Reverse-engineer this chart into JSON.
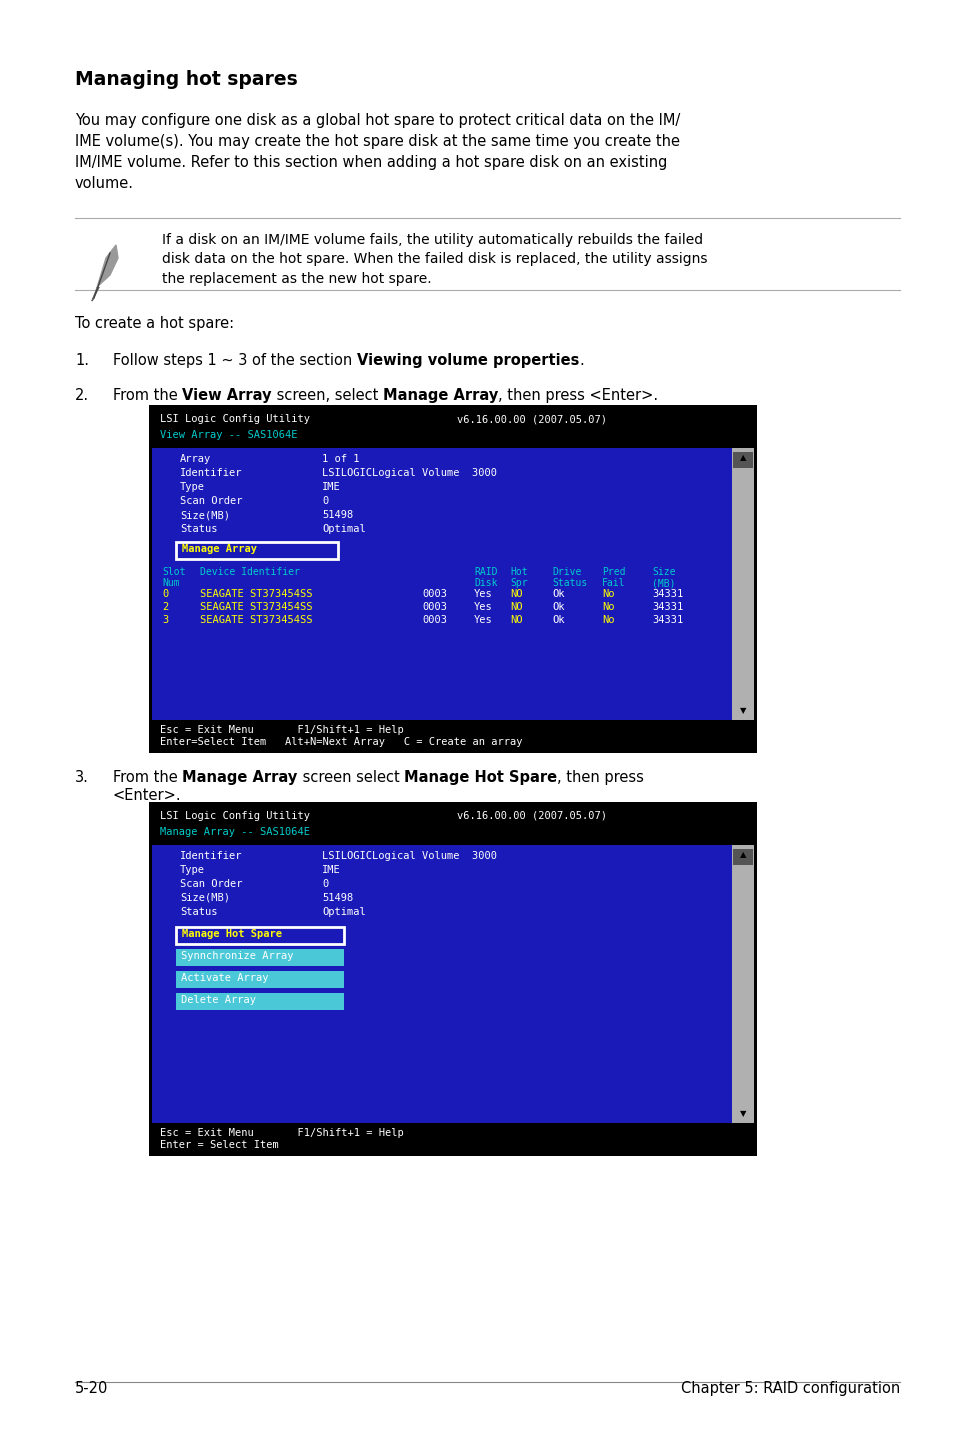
{
  "bg_color": "#ffffff",
  "title": "Managing hot spares",
  "body_text": "You may configure one disk as a global hot spare to protect critical data on the IM/\nIME volume(s). You may create the hot spare disk at the same time you create the\nIM/IME volume. Refer to this section when adding a hot spare disk on an existing\nvolume.",
  "note_text": "If a disk on an IM/IME volume fails, the utility automatically rebuilds the failed\ndisk data on the hot spare. When the failed disk is replaced, the utility assigns\nthe replacement as the new hot spare.",
  "intro_text": "To create a hot spare:",
  "step1_parts": [
    [
      "Follow steps 1 ~ 3 of the section ",
      false
    ],
    [
      "Viewing volume properties",
      true
    ],
    [
      ".",
      false
    ]
  ],
  "step2_parts": [
    [
      "From the ",
      false
    ],
    [
      "View Array",
      true
    ],
    [
      " screen, select ",
      false
    ],
    [
      "Manage Array",
      true
    ],
    [
      ", then press <Enter>.",
      false
    ]
  ],
  "step3_parts": [
    [
      "From the ",
      false
    ],
    [
      "Manage Array",
      true
    ],
    [
      " screen select ",
      false
    ],
    [
      "Manage Hot Spare",
      true
    ],
    [
      ", then press",
      false
    ]
  ],
  "step3_line2": "<Enter>.",
  "screen1_bg": "#1a1ab8",
  "screen1_title_color": "#00cccc",
  "screen1_header1": "LSI Logic Config Utility",
  "screen1_header2": "v6.16.00.00 (2007.05.07)",
  "screen1_subtitle": "View Array -- SAS1064E",
  "screen1_fields": [
    [
      "Array",
      "1 of 1"
    ],
    [
      "Identifier",
      "LSILOGICLogical Volume  3000"
    ],
    [
      "Type",
      "IME"
    ],
    [
      "Scan Order",
      "0"
    ],
    [
      "Size(MB)",
      "51498"
    ],
    [
      "Status",
      "Optimal"
    ]
  ],
  "screen1_button": "Manage Array",
  "screen1_col_h1": [
    "Slot",
    "Device Identifier",
    "",
    "RAID",
    "Hot",
    "Drive",
    "Pred",
    "Size"
  ],
  "screen1_col_h2": [
    "Num",
    "",
    "",
    "Disk",
    "Spr",
    "Status",
    "Fail",
    "(MB)"
  ],
  "screen1_rows": [
    [
      "0",
      "SEAGATE ST373454SS",
      "0003",
      "Yes",
      "NO",
      "Ok",
      "No",
      "34331"
    ],
    [
      "2",
      "SEAGATE ST373454SS",
      "0003",
      "Yes",
      "NO",
      "Ok",
      "No",
      "34331"
    ],
    [
      "3",
      "SEAGATE ST373454SS",
      "0003",
      "Yes",
      "NO",
      "Ok",
      "No",
      "34331"
    ]
  ],
  "screen1_row_colors": [
    [
      "yellow",
      "yellow",
      "white",
      "white",
      "yellow",
      "white",
      "yellow",
      "white"
    ],
    [
      "yellow",
      "yellow",
      "white",
      "white",
      "yellow",
      "white",
      "yellow",
      "white"
    ],
    [
      "yellow",
      "yellow",
      "white",
      "white",
      "yellow",
      "white",
      "yellow",
      "white"
    ]
  ],
  "screen1_footer1": "Esc = Exit Menu       F1/Shift+1 = Help",
  "screen1_footer2": "Enter=Select Item   Alt+N=Next Array   C = Create an array",
  "screen2_bg": "#1a1ab8",
  "screen2_title_color": "#00cccc",
  "screen2_header1": "LSI Logic Config Utility",
  "screen2_header2": "v6.16.00.00 (2007.05.07)",
  "screen2_subtitle": "Manage Array -- SAS1064E",
  "screen2_fields": [
    [
      "Identifier",
      "LSILOGICLogical Volume  3000"
    ],
    [
      "Type",
      "IME"
    ],
    [
      "Scan Order",
      "0"
    ],
    [
      "Size(MB)",
      "51498"
    ],
    [
      "Status",
      "Optimal"
    ]
  ],
  "screen2_buttons": [
    "Manage Hot Spare",
    "Synnchronize Array",
    "Activate Array",
    "Delete Array"
  ],
  "screen2_btn_selected": 0,
  "screen2_btn_cyan": "#4ac8d8",
  "screen2_footer1": "Esc = Exit Menu       F1/Shift+1 = Help",
  "screen2_footer2": "Enter = Select Item",
  "footer_left": "5-20",
  "footer_right": "Chapter 5: RAID configuration"
}
